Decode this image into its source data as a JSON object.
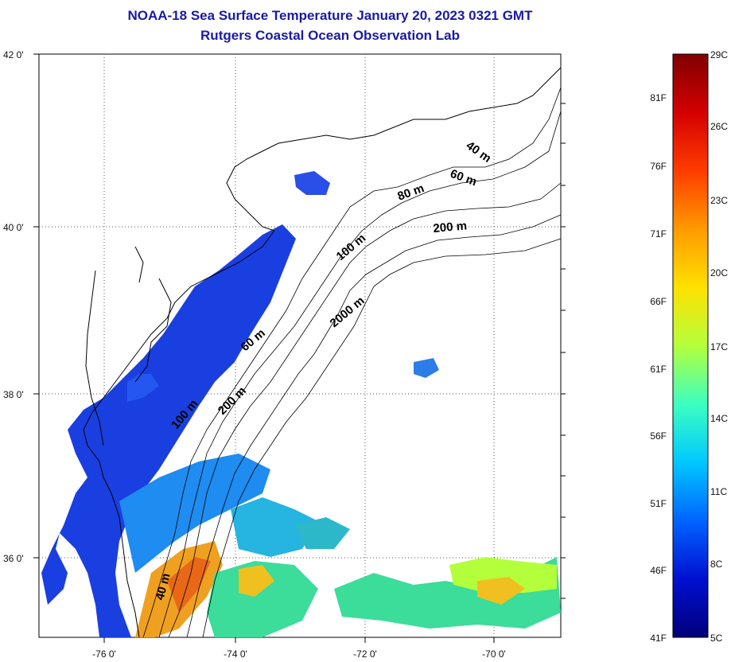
{
  "title_line1": "NOAA-18 Sea Surface Temperature January 20, 2023 0321 GMT",
  "title_line2": "Rutgers Coastal Ocean Observation Lab",
  "axes": {
    "lat_labels": [
      "42 0'",
      "40 0'",
      "38 0'",
      "36 0'"
    ],
    "lon_labels": [
      "-76 0'",
      "-74 0'",
      "-72 0'",
      "-70 0'"
    ]
  },
  "contour_labels": [
    "40 m",
    "60 m",
    "80 m",
    "200 m",
    "100 m",
    "2000 m",
    "60 m",
    "200 m",
    "100 m",
    "40 m"
  ],
  "colorbar": {
    "fahrenheit": [
      "81F",
      "76F",
      "71F",
      "66F",
      "61F",
      "56F",
      "51F",
      "46F",
      "41F"
    ],
    "celsius": [
      "29C",
      "26C",
      "23C",
      "20C",
      "17C",
      "14C",
      "11C",
      "8C",
      "5C"
    ],
    "gradient_colors": [
      "#7f0000",
      "#d40000",
      "#ff3c00",
      "#ff9a00",
      "#ffe100",
      "#b4ff3c",
      "#3cffc0",
      "#00c8ff",
      "#0064ff",
      "#0010d0",
      "#00007a"
    ]
  },
  "colors": {
    "title": "#1a1aa6",
    "land": "#ffffff",
    "cold_water": "#1a3fe0",
    "cool_water": "#1e8cf0",
    "mid_water": "#3cdc9a",
    "warm_water": "#f0a020"
  }
}
